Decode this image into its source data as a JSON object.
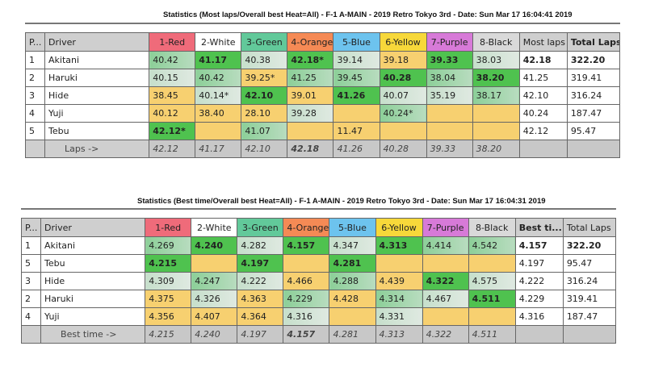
{
  "colors": {
    "1-Red": "#ef6b7a",
    "2-White": "#ffffff",
    "3-Green": "#62c99a",
    "4-Orange": "#f58a55",
    "5-Blue": "#6dc3ee",
    "6-Yellow": "#f7d83a",
    "7-Purple": "#d77ad8",
    "8-Black": "#d9d9d9"
  },
  "tables": [
    {
      "title": "Statistics (Most laps/Overall best Heat=All) - F-1 A-MAIN - 2019 Retro Tokyo 3rd - Date: Sun Mar 17 16:04:41 2019",
      "headers": {
        "pos": "P...",
        "driver": "Driver",
        "lanes": [
          "1-Red",
          "2-White",
          "3-Green",
          "4-Orange",
          "5-Blue",
          "6-Yellow",
          "7-Purple",
          "8-Black"
        ],
        "stat": "Most laps",
        "total": "Total Laps"
      },
      "bold_headers": [
        "total"
      ],
      "rows": [
        {
          "pos": "1",
          "driver": "Akitani",
          "cells": [
            [
              "40.42",
              "mid"
            ],
            [
              "41.17",
              "best"
            ],
            [
              "40.38",
              "light"
            ],
            [
              "42.18*",
              "best"
            ],
            [
              "39.14",
              "light"
            ],
            [
              "39.18",
              "yel"
            ],
            [
              "39.33",
              "best"
            ],
            [
              "38.03",
              "light"
            ]
          ],
          "stat": "42.18",
          "total": "322.20",
          "bold": true
        },
        {
          "pos": "2",
          "driver": "Haruki",
          "cells": [
            [
              "40.15",
              "light"
            ],
            [
              "40.42",
              "mid"
            ],
            [
              "39.25*",
              "yel"
            ],
            [
              "41.25",
              "mid"
            ],
            [
              "39.45",
              "mid"
            ],
            [
              "40.28",
              "best"
            ],
            [
              "38.04",
              "mid"
            ],
            [
              "38.20",
              "best"
            ]
          ],
          "stat": "41.25",
          "total": "319.41"
        },
        {
          "pos": "3",
          "driver": "Hide",
          "cells": [
            [
              "38.45",
              "yel"
            ],
            [
              "40.14*",
              "light"
            ],
            [
              "42.10",
              "best"
            ],
            [
              "39.01",
              "yel"
            ],
            [
              "41.26",
              "best"
            ],
            [
              "40.07",
              "light"
            ],
            [
              "35.19",
              "light"
            ],
            [
              "38.17",
              "mid"
            ]
          ],
          "stat": "42.10",
          "total": "316.24"
        },
        {
          "pos": "4",
          "driver": "Yuji",
          "cells": [
            [
              "40.12",
              "yel"
            ],
            [
              "38.40",
              "yel"
            ],
            [
              "28.10",
              "yel"
            ],
            [
              "39.28",
              "light"
            ],
            [
              "",
              "yel"
            ],
            [
              "40.24*",
              "mid"
            ],
            [
              "",
              "yel"
            ],
            [
              "",
              "yel"
            ]
          ],
          "stat": "40.24",
          "total": "187.47"
        },
        {
          "pos": "5",
          "driver": "Tebu",
          "cells": [
            [
              "42.12*",
              "best"
            ],
            [
              "",
              "yel"
            ],
            [
              "41.07",
              "mid"
            ],
            [
              "",
              "yel"
            ],
            [
              "11.47",
              "yel"
            ],
            [
              "",
              "yel"
            ],
            [
              "",
              "yel"
            ],
            [
              "",
              "yel"
            ]
          ],
          "stat": "42.12",
          "total": "95.47"
        }
      ],
      "footer": {
        "label": "Laps ->",
        "values": [
          "42.12",
          "41.17",
          "42.10",
          "42.18",
          "41.26",
          "40.28",
          "39.33",
          "38.20"
        ],
        "bold_index": 3
      }
    },
    {
      "title": "Statistics (Best time/Overall best Heat=All) - F-1 A-MAIN - 2019 Retro Tokyo 3rd - Date: Sun Mar 17 16:04:31 2019",
      "headers": {
        "pos": "P...",
        "driver": "Driver",
        "lanes": [
          "1-Red",
          "2-White",
          "3-Green",
          "4-Orange",
          "5-Blue",
          "6-Yellow",
          "7-Purple",
          "8-Black"
        ],
        "stat": "Best ti...",
        "total": "Total Laps"
      },
      "bold_headers": [
        "stat"
      ],
      "rows": [
        {
          "pos": "1",
          "driver": "Akitani",
          "cells": [
            [
              "4.269",
              "mid"
            ],
            [
              "4.240",
              "best"
            ],
            [
              "4.282",
              "light"
            ],
            [
              "4.157",
              "best"
            ],
            [
              "4.347",
              "light"
            ],
            [
              "4.313",
              "best"
            ],
            [
              "4.414",
              "mid"
            ],
            [
              "4.542",
              "mid"
            ]
          ],
          "stat": "4.157",
          "total": "322.20",
          "bold": true
        },
        {
          "pos": "5",
          "driver": "Tebu",
          "cells": [
            [
              "4.215",
              "best"
            ],
            [
              "",
              "yel"
            ],
            [
              "4.197",
              "best"
            ],
            [
              "",
              "yel"
            ],
            [
              "4.281",
              "best"
            ],
            [
              "",
              "yel"
            ],
            [
              "",
              "yel"
            ],
            [
              "",
              "yel"
            ]
          ],
          "stat": "4.197",
          "total": "95.47"
        },
        {
          "pos": "3",
          "driver": "Hide",
          "cells": [
            [
              "4.309",
              "light"
            ],
            [
              "4.247",
              "mid"
            ],
            [
              "4.222",
              "light"
            ],
            [
              "4.466",
              "yel"
            ],
            [
              "4.288",
              "mid"
            ],
            [
              "4.439",
              "yel"
            ],
            [
              "4.322",
              "best"
            ],
            [
              "4.575",
              "light"
            ]
          ],
          "stat": "4.222",
          "total": "316.24"
        },
        {
          "pos": "2",
          "driver": "Haruki",
          "cells": [
            [
              "4.375",
              "yel"
            ],
            [
              "4.326",
              "light"
            ],
            [
              "4.363",
              "yel"
            ],
            [
              "4.229",
              "mid"
            ],
            [
              "4.428",
              "yel"
            ],
            [
              "4.314",
              "mid"
            ],
            [
              "4.467",
              "light"
            ],
            [
              "4.511",
              "best"
            ]
          ],
          "stat": "4.229",
          "total": "319.41"
        },
        {
          "pos": "4",
          "driver": "Yuji",
          "cells": [
            [
              "4.356",
              "yel"
            ],
            [
              "4.407",
              "yel"
            ],
            [
              "4.364",
              "yel"
            ],
            [
              "4.316",
              "light"
            ],
            [
              "",
              "yel"
            ],
            [
              "4.331",
              "light"
            ],
            [
              "",
              "yel"
            ],
            [
              "",
              "yel"
            ]
          ],
          "stat": "4.316",
          "total": "187.47"
        }
      ],
      "footer": {
        "label": "Best time ->",
        "values": [
          "4.215",
          "4.240",
          "4.197",
          "4.157",
          "4.281",
          "4.313",
          "4.322",
          "4.511"
        ],
        "bold_index": 3
      }
    }
  ]
}
